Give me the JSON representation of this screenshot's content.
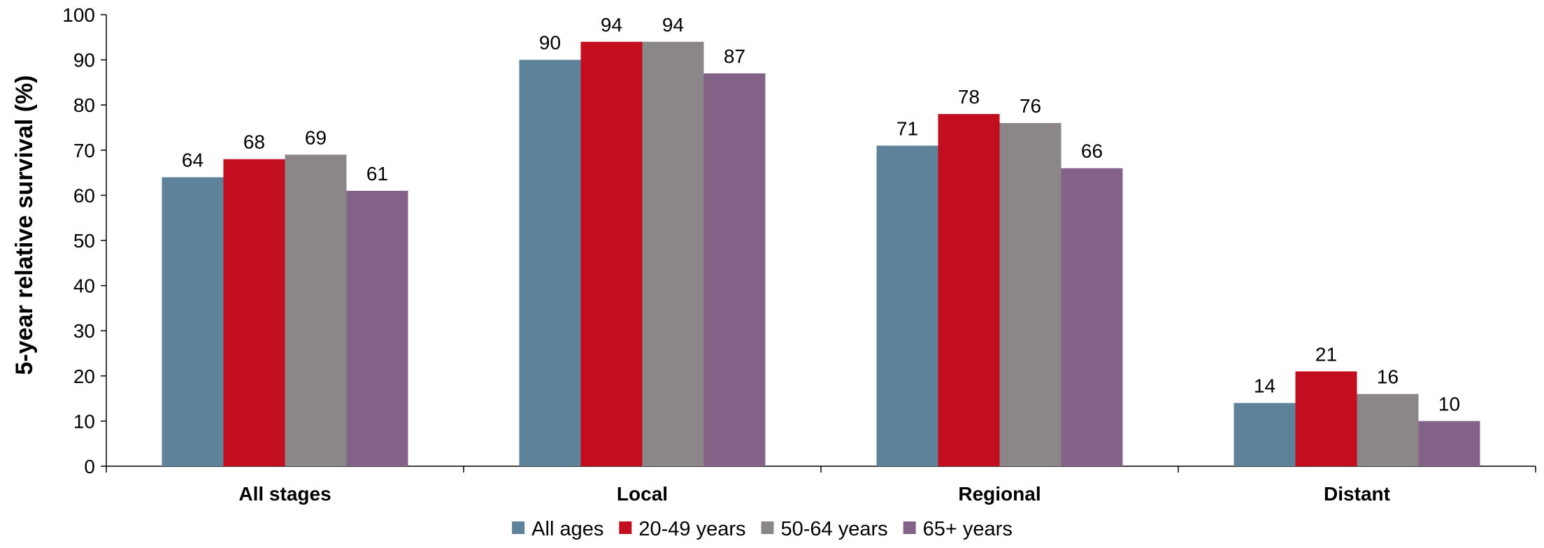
{
  "chart_data": {
    "type": "bar",
    "title": "",
    "xlabel": "",
    "ylabel": "5-year relative survival (%)",
    "ylim": [
      0,
      100
    ],
    "yticks": [
      0,
      10,
      20,
      30,
      40,
      50,
      60,
      70,
      80,
      90,
      100
    ],
    "grid": false,
    "legend_position": "bottom",
    "categories": [
      "All stages",
      "Local",
      "Regional",
      "Distant"
    ],
    "series": [
      {
        "name": "All ages",
        "color": "#5e8299",
        "values": [
          64,
          90,
          71,
          14
        ]
      },
      {
        "name": "20-49 years",
        "color": "#c20e1f",
        "values": [
          68,
          94,
          78,
          21
        ]
      },
      {
        "name": "50-64 years",
        "color": "#8b8789",
        "values": [
          69,
          94,
          76,
          16
        ]
      },
      {
        "name": "65+ years",
        "color": "#836388",
        "values": [
          61,
          87,
          66,
          10
        ]
      }
    ]
  }
}
